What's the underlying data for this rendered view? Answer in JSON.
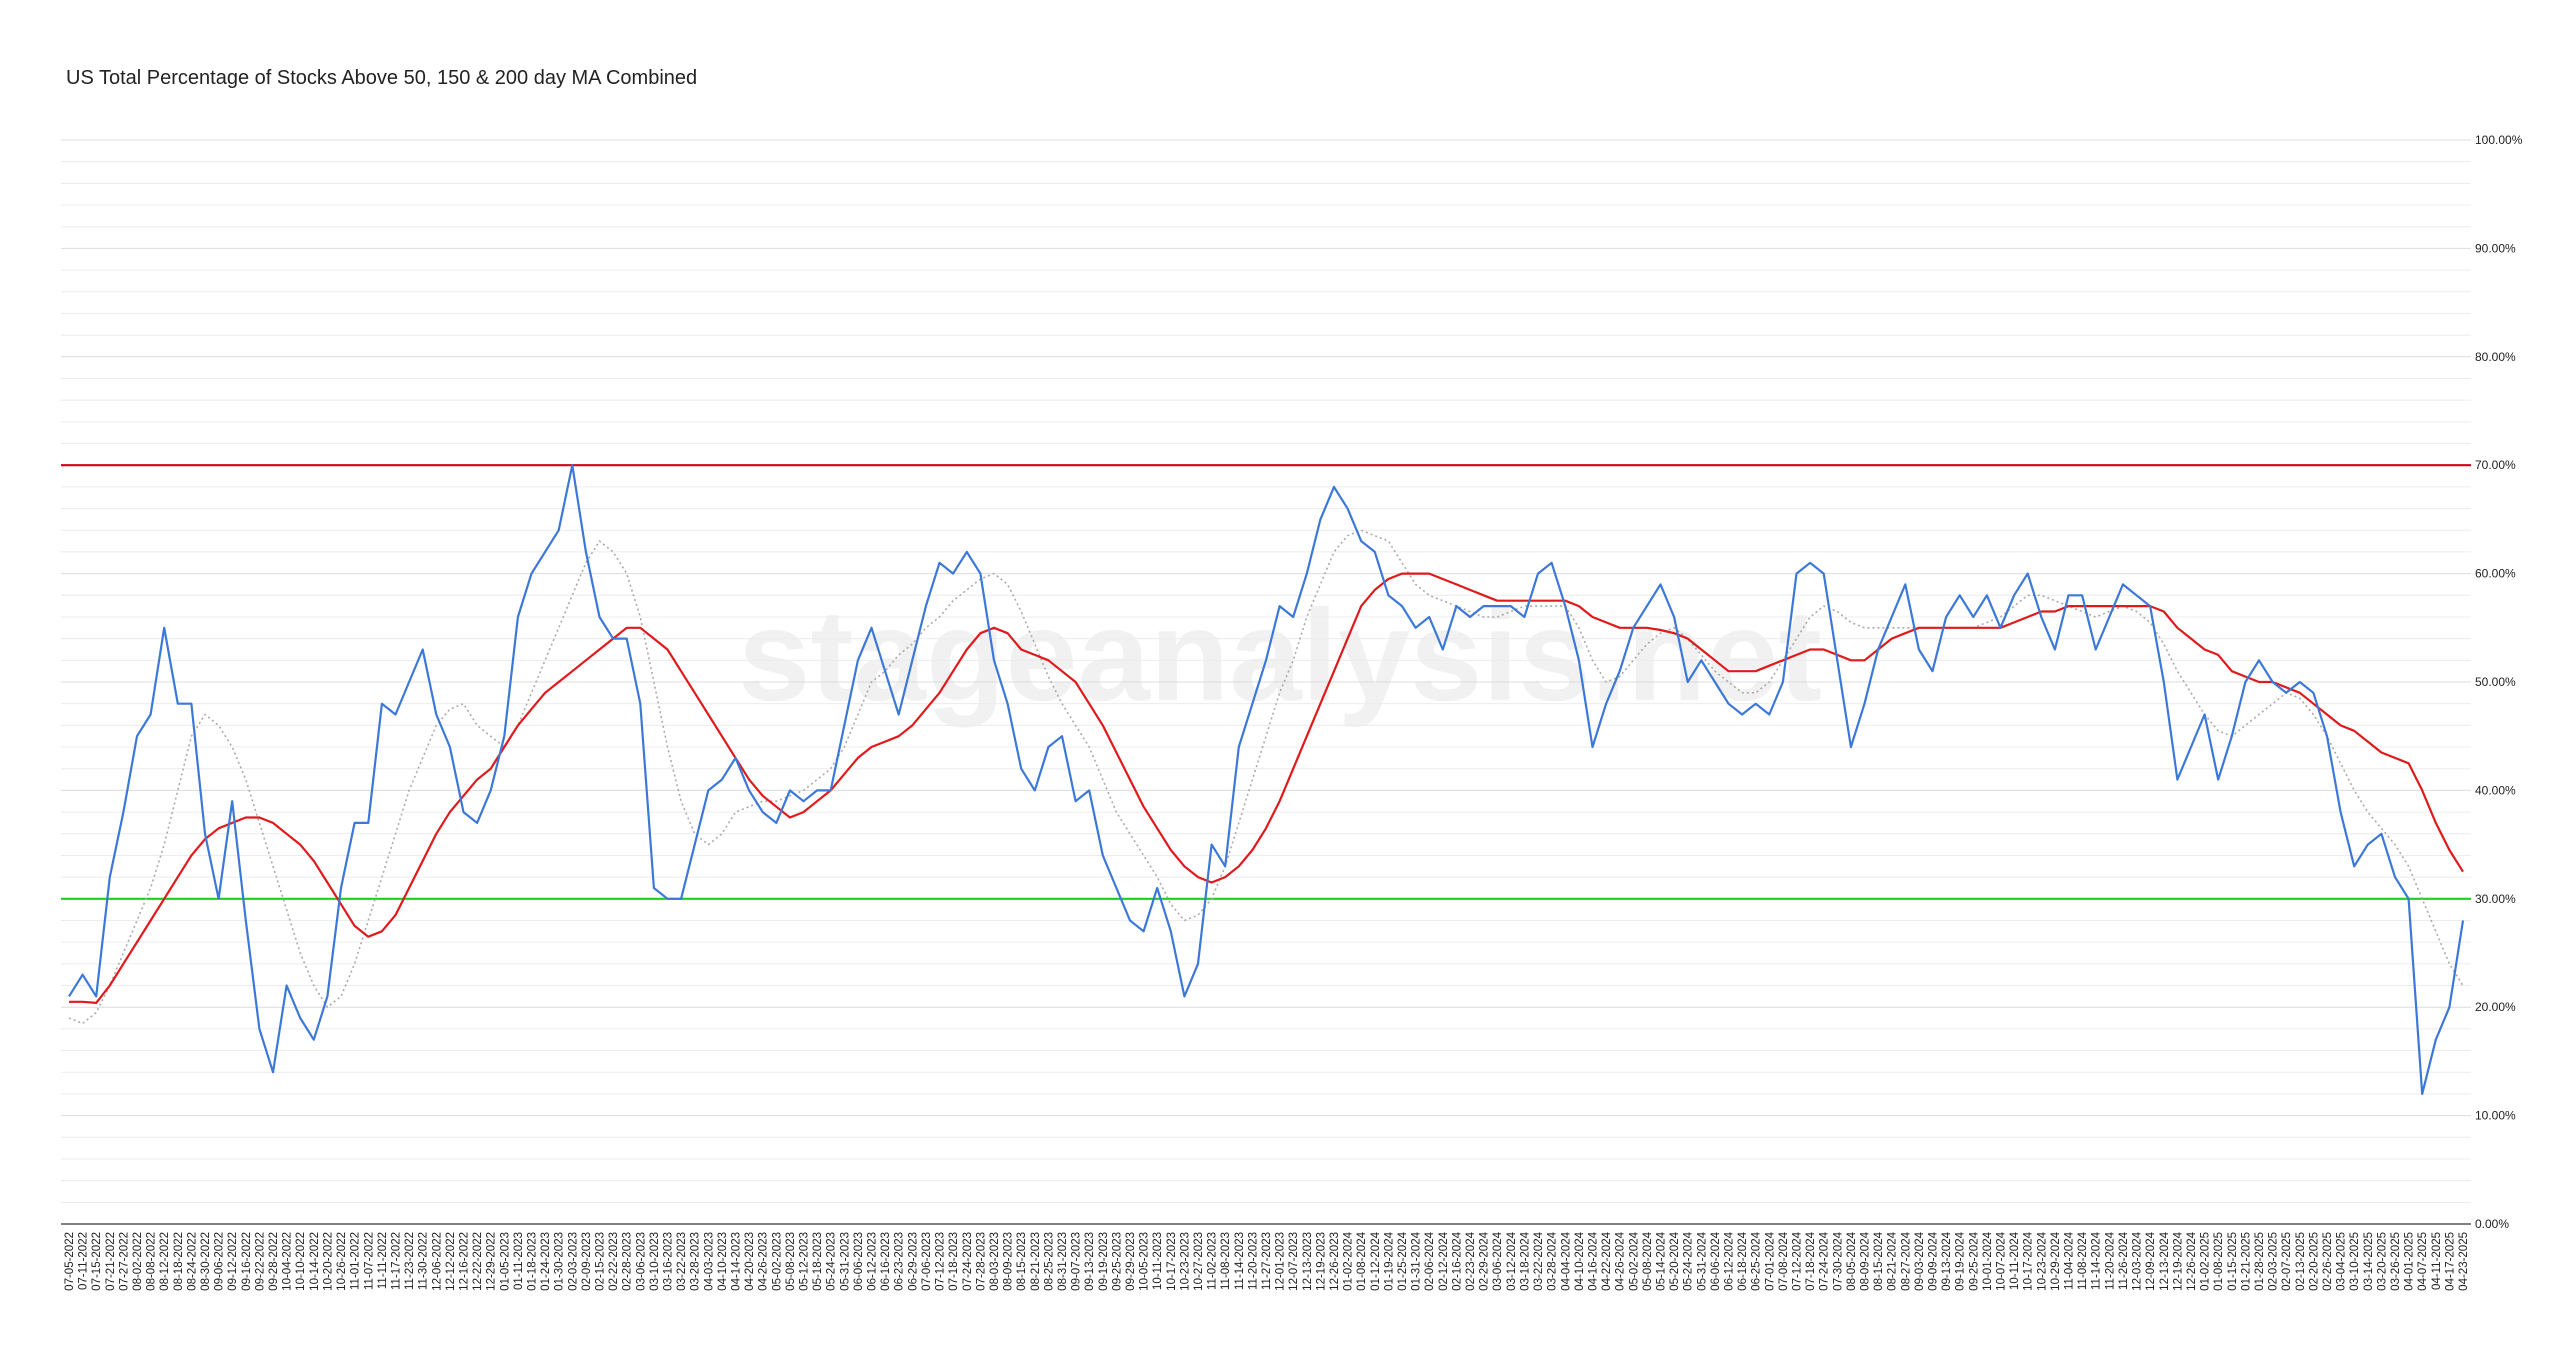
{
  "chart_data": {
    "type": "line",
    "title": "US Total Percentage of Stocks Above 50, 150 & 200 day MA Combined",
    "watermark": "stageanalysis.net",
    "categories": [
      "07-05-2022",
      "07-11-2022",
      "07-15-2022",
      "07-21-2022",
      "07-27-2022",
      "08-02-2022",
      "08-08-2022",
      "08-12-2022",
      "08-18-2022",
      "08-24-2022",
      "08-30-2022",
      "09-06-2022",
      "09-12-2022",
      "09-16-2022",
      "09-22-2022",
      "09-28-2022",
      "10-04-2022",
      "10-10-2022",
      "10-14-2022",
      "10-20-2022",
      "10-26-2022",
      "11-01-2022",
      "11-07-2022",
      "11-11-2022",
      "11-17-2022",
      "11-23-2022",
      "11-30-2022",
      "12-06-2022",
      "12-12-2022",
      "12-16-2022",
      "12-22-2022",
      "12-29-2022",
      "01-05-2023",
      "01-11-2023",
      "01-18-2023",
      "01-24-2023",
      "01-30-2023",
      "02-03-2023",
      "02-09-2023",
      "02-15-2023",
      "02-22-2023",
      "02-28-2023",
      "03-06-2023",
      "03-10-2023",
      "03-16-2023",
      "03-22-2023",
      "03-28-2023",
      "04-03-2023",
      "04-10-2023",
      "04-14-2023",
      "04-20-2023",
      "04-26-2023",
      "05-02-2023",
      "05-08-2023",
      "05-12-2023",
      "05-18-2023",
      "05-24-2023",
      "05-31-2023",
      "06-06-2023",
      "06-12-2023",
      "06-16-2023",
      "06-23-2023",
      "06-29-2023",
      "07-06-2023",
      "07-12-2023",
      "07-18-2023",
      "07-24-2023",
      "07-28-2023",
      "08-03-2023",
      "08-09-2023",
      "08-15-2023",
      "08-21-2023",
      "08-25-2023",
      "08-31-2023",
      "09-07-2023",
      "09-13-2023",
      "09-19-2023",
      "09-25-2023",
      "09-29-2023",
      "10-05-2023",
      "10-11-2023",
      "10-17-2023",
      "10-23-2023",
      "10-27-2023",
      "11-02-2023",
      "11-08-2023",
      "11-14-2023",
      "11-20-2023",
      "11-27-2023",
      "12-01-2023",
      "12-07-2023",
      "12-13-2023",
      "12-19-2023",
      "12-26-2023",
      "01-02-2024",
      "01-08-2024",
      "01-12-2024",
      "01-19-2024",
      "01-25-2024",
      "01-31-2024",
      "02-06-2024",
      "02-12-2024",
      "02-16-2024",
      "02-23-2024",
      "02-29-2024",
      "03-06-2024",
      "03-12-2024",
      "03-18-2024",
      "03-22-2024",
      "03-28-2024",
      "04-04-2024",
      "04-10-2024",
      "04-16-2024",
      "04-22-2024",
      "04-26-2024",
      "05-02-2024",
      "05-08-2024",
      "05-14-2024",
      "05-20-2024",
      "05-24-2024",
      "05-31-2024",
      "06-06-2024",
      "06-12-2024",
      "06-18-2024",
      "06-25-2024",
      "07-01-2024",
      "07-08-2024",
      "07-12-2024",
      "07-18-2024",
      "07-24-2024",
      "07-30-2024",
      "08-05-2024",
      "08-09-2024",
      "08-15-2024",
      "08-21-2024",
      "08-27-2024",
      "09-03-2024",
      "09-09-2024",
      "09-13-2024",
      "09-19-2024",
      "09-25-2024",
      "10-01-2024",
      "10-07-2024",
      "10-11-2024",
      "10-17-2024",
      "10-23-2024",
      "10-29-2024",
      "11-04-2024",
      "11-08-2024",
      "11-14-2024",
      "11-20-2024",
      "11-26-2024",
      "12-03-2024",
      "12-09-2024",
      "12-13-2024",
      "12-19-2024",
      "12-26-2024",
      "01-02-2025",
      "01-08-2025",
      "01-15-2025",
      "01-21-2025",
      "01-28-2025",
      "02-03-2025",
      "02-07-2025",
      "02-13-2025",
      "02-20-2025",
      "02-26-2025",
      "03-04-2025",
      "03-10-2025",
      "03-14-2025",
      "03-20-2025",
      "03-26-2025",
      "04-01-2025",
      "04-07-2025",
      "04-11-2025",
      "04-17-2025",
      "04-23-2025"
    ],
    "series": [
      {
        "color": "#aaaaaa",
        "dash": true,
        "values": [
          19,
          18.5,
          19.5,
          22,
          25,
          28,
          31,
          35,
          40,
          45,
          47,
          46,
          44,
          41,
          37,
          33,
          29,
          25,
          22,
          20,
          21,
          24,
          28,
          32,
          36,
          40,
          43,
          46,
          47.5,
          48,
          46,
          45,
          44,
          46,
          49,
          52,
          55,
          58,
          61,
          63,
          62,
          60,
          56,
          50,
          44,
          39,
          36,
          35,
          36,
          38,
          38.5,
          39,
          39,
          39.5,
          40,
          41,
          42,
          44,
          47,
          50,
          51,
          52.5,
          53.5,
          55,
          56,
          57.5,
          58.5,
          59.5,
          60,
          59,
          56.5,
          53.5,
          50.5,
          48,
          46,
          44,
          41,
          38,
          36,
          34,
          32,
          29.5,
          28,
          28.5,
          30,
          33,
          37,
          41,
          45,
          49,
          52,
          56,
          59,
          62,
          63.5,
          64,
          63.5,
          63,
          61,
          59,
          58,
          57.5,
          57,
          56.5,
          56,
          56,
          56.5,
          57,
          57,
          57,
          57,
          55,
          52,
          50,
          50.5,
          52,
          53.5,
          54.5,
          55,
          54,
          52.5,
          51,
          50,
          49,
          49,
          50,
          52,
          54,
          56,
          57,
          56.5,
          55.5,
          55,
          55,
          55,
          55,
          55,
          55,
          55,
          55,
          55,
          55.5,
          56,
          57,
          58,
          58,
          57.5,
          57,
          56.5,
          56,
          56.5,
          57,
          56.5,
          55.5,
          53.5,
          51,
          49,
          47,
          45.5,
          45,
          46,
          47,
          48,
          49,
          48.5,
          47,
          45,
          42.5,
          40,
          38,
          36.5,
          35,
          33,
          30,
          27,
          24,
          22
        ]
      },
      {
        "color": "#e0191b",
        "values": [
          20.5,
          20.5,
          20.4,
          22,
          24,
          26,
          28,
          30,
          32,
          34,
          35.5,
          36.5,
          37,
          37.5,
          37.5,
          37,
          36,
          35,
          33.5,
          31.5,
          29.5,
          27.5,
          26.5,
          27,
          28.5,
          31,
          33.5,
          36,
          38,
          39.5,
          41,
          42,
          44,
          46,
          47.5,
          49,
          50,
          51,
          52,
          53,
          54,
          55,
          55,
          54,
          53,
          51,
          49,
          47,
          45,
          43,
          41,
          39.5,
          38.5,
          37.5,
          38,
          39,
          40,
          41.5,
          43,
          44,
          44.5,
          45,
          46,
          47.5,
          49,
          51,
          53,
          54.5,
          55,
          54.5,
          53,
          52.5,
          52,
          51,
          50,
          48,
          46,
          43.5,
          41,
          38.5,
          36.5,
          34.5,
          33,
          32,
          31.5,
          32,
          33,
          34.5,
          36.5,
          39,
          42,
          45,
          48,
          51,
          54,
          57,
          58.5,
          59.5,
          60,
          60,
          60,
          59.5,
          59,
          58.5,
          58,
          57.5,
          57.5,
          57.5,
          57.5,
          57.5,
          57.5,
          57,
          56,
          55.5,
          55,
          55,
          55,
          54.8,
          54.5,
          54,
          53,
          52,
          51,
          51,
          51,
          51.5,
          52,
          52.5,
          53,
          53,
          52.5,
          52,
          52,
          53,
          54,
          54.5,
          55,
          55,
          55,
          55,
          55,
          55,
          55,
          55.5,
          56,
          56.5,
          56.5,
          57,
          57,
          57,
          57,
          57,
          57,
          57,
          56.5,
          55,
          54,
          53,
          52.5,
          51,
          50.5,
          50,
          50,
          49.5,
          49,
          48,
          47,
          46,
          45.5,
          44.5,
          43.5,
          43,
          42.5,
          40,
          37,
          34.5,
          32.5
        ]
      },
      {
        "color": "#3c78d8",
        "values": [
          21,
          23,
          21,
          32,
          38,
          45,
          47,
          55,
          48,
          48,
          36,
          30,
          39,
          28,
          18,
          14,
          22,
          19,
          17,
          21,
          31,
          37,
          37,
          48,
          47,
          50,
          53,
          47,
          44,
          38,
          37,
          40,
          45,
          56,
          60,
          62,
          64,
          70,
          62,
          56,
          54,
          54,
          48,
          31,
          30,
          30,
          35,
          40,
          41,
          43,
          40,
          38,
          37,
          40,
          39,
          40,
          40,
          46,
          52,
          55,
          51,
          47,
          52,
          57,
          61,
          60,
          62,
          60,
          52,
          48,
          42,
          40,
          44,
          45,
          39,
          40,
          34,
          31,
          28,
          27,
          31,
          27,
          21,
          24,
          35,
          33,
          44,
          48,
          52,
          57,
          56,
          60,
          65,
          68,
          66,
          63,
          62,
          58,
          57,
          55,
          56,
          53,
          57,
          56,
          57,
          57,
          57,
          56,
          60,
          61,
          57,
          52,
          44,
          48,
          51,
          55,
          57,
          59,
          56,
          50,
          52,
          50,
          48,
          47,
          48,
          47,
          50,
          60,
          61,
          60,
          52,
          44,
          48,
          53,
          56,
          59,
          53,
          51,
          56,
          58,
          56,
          58,
          55,
          58,
          60,
          56,
          53,
          58,
          58,
          53,
          56,
          59,
          58,
          57,
          50,
          41,
          44,
          47,
          41,
          45,
          50,
          52,
          50,
          49,
          50,
          49,
          45,
          38,
          33,
          35,
          36,
          32,
          30,
          12,
          17,
          20,
          28
        ]
      }
    ],
    "reference_lines": [
      {
        "value": 70,
        "color": "#d0021b"
      },
      {
        "value": 30,
        "color": "#22cc22"
      }
    ],
    "ylim": [
      0,
      100
    ],
    "yticks": [
      {
        "value": 0,
        "label": "0.00%"
      },
      {
        "value": 10,
        "label": "10.00%"
      },
      {
        "value": 20,
        "label": "20.00%"
      },
      {
        "value": 30,
        "label": "30.00%"
      },
      {
        "value": 40,
        "label": "40.00%"
      },
      {
        "value": 50,
        "label": "50.00%"
      },
      {
        "value": 60,
        "label": "60.00%"
      },
      {
        "value": 70,
        "label": "70.00%"
      },
      {
        "value": 80,
        "label": "80.00%"
      },
      {
        "value": 90,
        "label": "90.00%"
      },
      {
        "value": 100,
        "label": "100.00%"
      }
    ],
    "minor_yticks": [
      2,
      4,
      6,
      8,
      12,
      14,
      16,
      18,
      22,
      24,
      26,
      28,
      32,
      34,
      36,
      38,
      42,
      44,
      46,
      48,
      52,
      54,
      56,
      58,
      62,
      64,
      66,
      68,
      72,
      74,
      76,
      78,
      82,
      84,
      86,
      88,
      92,
      94,
      96,
      98
    ],
    "grid": true
  }
}
